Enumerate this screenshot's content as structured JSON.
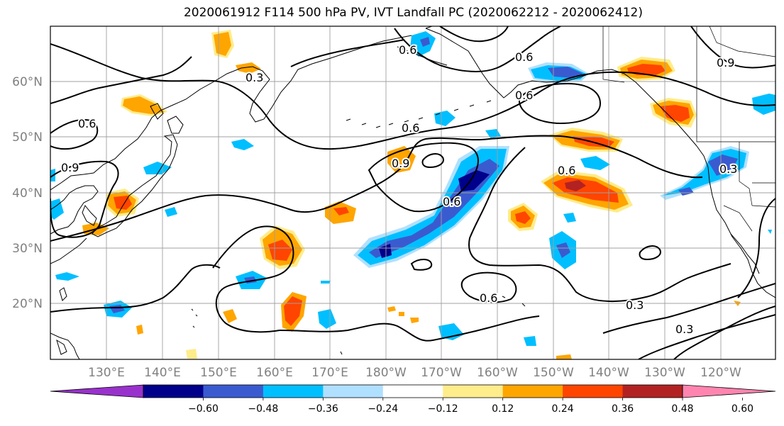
{
  "title": "2020061912 F114 500 hPa PV, IVT Landfall PC (2020062212 - 2020062412)",
  "lat_labels": [
    "60°N",
    "50°N",
    "40°N",
    "30°N",
    "20°N"
  ],
  "lon_labels": [
    "130°E",
    "140°E",
    "150°E",
    "160°E",
    "170°E",
    "180°W",
    "170°W",
    "160°W",
    "150°W",
    "140°W",
    "130°W",
    "120°W"
  ],
  "colorbar": {
    "ticks": [
      "−0.60",
      "−0.48",
      "−0.36",
      "−0.24",
      "−0.12",
      "0.12",
      "0.24",
      "0.36",
      "0.48",
      "0.60"
    ],
    "colors": [
      "#9932cc",
      "#00008b",
      "#3a5bd0",
      "#00bfff",
      "#b0e0ff",
      "#ffffff",
      "#ffec8b",
      "#ffa500",
      "#ff4500",
      "#b22222",
      "#ff85b0"
    ]
  },
  "contour_labels": [
    "0.6",
    "0.9",
    "0.3",
    "0.6",
    "0.6",
    "0.9",
    "0.6",
    "0.9",
    "0.6",
    "0.6",
    "0.6",
    "0.3",
    "0.3",
    "0.3",
    "0.6"
  ],
  "colors": {
    "pos_mid": "#ffa500",
    "pos_high": "#ff4500",
    "pos_max": "#b22222",
    "neg_mid": "#00bfff",
    "neg_high": "#3a5bd0",
    "neg_max": "#00008b",
    "neg_low": "#b0e0ff",
    "pos_low": "#ffec8b"
  }
}
